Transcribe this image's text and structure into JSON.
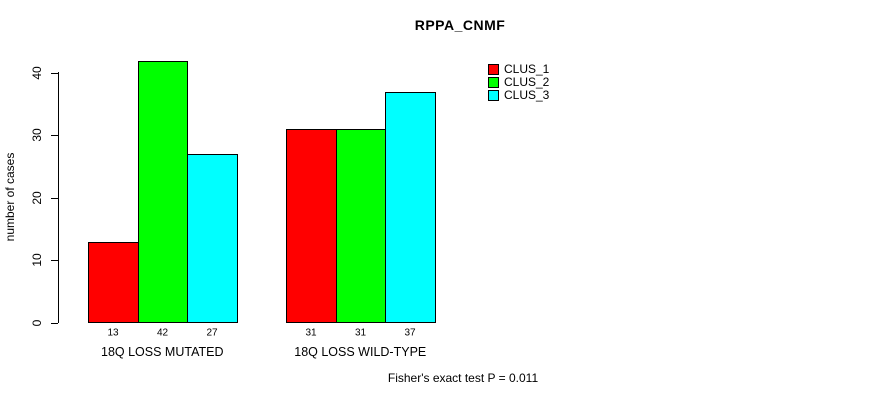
{
  "title": "RPPA_CNMF",
  "footer_note": "Fisher's exact test P = 0.011",
  "chart_data": {
    "type": "bar",
    "title": "RPPA_CNMF",
    "xlabel": "",
    "ylabel": "number of cases",
    "ylim": [
      0,
      42
    ],
    "yticks": [
      0,
      10,
      20,
      30,
      40
    ],
    "grid": false,
    "legend_position": "top-right-inside",
    "categories": [
      "18Q LOSS MUTATED",
      "18Q LOSS WILD-TYPE"
    ],
    "series": [
      {
        "name": "CLUS_1",
        "color": "#FF0000",
        "values": [
          13,
          31
        ]
      },
      {
        "name": "CLUS_2",
        "color": "#00FF00",
        "values": [
          42,
          31
        ]
      },
      {
        "name": "CLUS_3",
        "color": "#00FFFF",
        "values": [
          27,
          37
        ]
      }
    ],
    "bar_value_labels": [
      [
        13,
        42,
        27
      ],
      [
        31,
        31,
        37
      ]
    ],
    "annotation": "Fisher's exact test P = 0.011"
  }
}
